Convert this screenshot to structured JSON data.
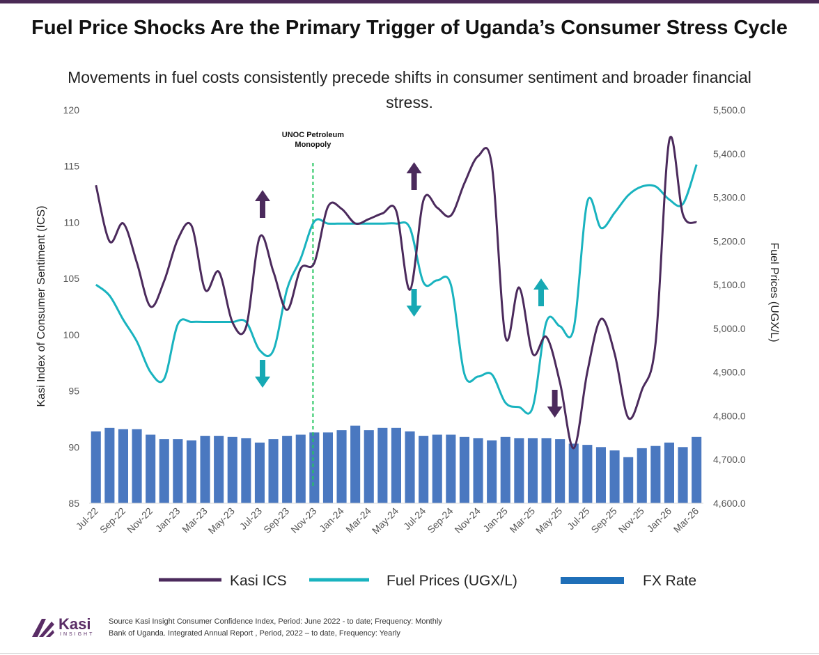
{
  "title": "Fuel Price Shocks Are the Primary Trigger of Uganda’s Consumer Stress Cycle",
  "subtitle": "Movements in fuel costs consistently precede shifts in consumer sentiment and broader financial stress.",
  "brand": {
    "name": "Kasi",
    "tagline": "INSIGHT"
  },
  "source_lines": [
    "Source Kasi Insight Consumer Confidence Index, Period: June 2022 - to date; Frequency: Monthly",
    "Bank of Uganda. Integrated Annual Report , Period, 2022 – to date, Frequency: Yearly"
  ],
  "colors": {
    "ics": "#4b2a5c",
    "fuel": "#19b3bf",
    "fx": "#4a78c0",
    "marker": "#22c55e",
    "arrow_purple": "#4b2a5c",
    "arrow_teal": "#17a9b4"
  },
  "chart_data": {
    "type": "line",
    "xlabel": "",
    "ylabel": "Kasi Index of Consumer Sentiment (ICS)",
    "y2label": "Fuel Prices  (UGX/L)",
    "ylim": [
      85,
      120
    ],
    "y2lim": [
      4600,
      5500
    ],
    "yticks": [
      "85",
      "90",
      "95",
      "100",
      "105",
      "110",
      "115",
      "120"
    ],
    "y2ticks": [
      "4,600.0",
      "4,700.0",
      "4,800.0",
      "4,900.0",
      "5,000.0",
      "5,100.0",
      "5,200.0",
      "5,300.0",
      "5,400.0",
      "5,500.0"
    ],
    "x": [
      "Jul-22",
      "Aug-22",
      "Sep-22",
      "Oct-22",
      "Nov-22",
      "Dec-22",
      "Jan-23",
      "Feb-23",
      "Mar-23",
      "Apr-23",
      "May-23",
      "Jun-23",
      "Jul-23",
      "Aug-23",
      "Sep-23",
      "Oct-23",
      "Nov-23",
      "Dec-23",
      "Jan-24",
      "Feb-24",
      "Mar-24",
      "Apr-24",
      "May-24",
      "Jun-24",
      "Jul-24",
      "Aug-24",
      "Sep-24",
      "Oct-24",
      "Nov-24",
      "Dec-24",
      "Jan-25",
      "Feb-25",
      "Mar-25",
      "Apr-25",
      "May-25",
      "Jun-25",
      "Jul-25",
      "Aug-25",
      "Sep-25",
      "Oct-25",
      "Nov-25",
      "Dec-25",
      "Jan-26",
      "Feb-26",
      "Mar-26"
    ],
    "xtick_labels": [
      "Jul-22",
      "Sep-22",
      "Nov-22",
      "Jan-23",
      "Mar-23",
      "May-23",
      "Jul-23",
      "Sep-23",
      "Nov-23",
      "Jan-24",
      "Mar-24",
      "May-24",
      "Jul-24",
      "Sep-24",
      "Nov-24",
      "Jan-25",
      "Mar-25",
      "May-25",
      "Jul-25",
      "Sep-25",
      "Nov-25",
      "Jan-26",
      "Mar-26"
    ],
    "series": [
      {
        "name": "Kasi ICS",
        "kind": "line",
        "axis": "left",
        "values": [
          113.3,
          108.3,
          109.9,
          106.4,
          102.5,
          104.8,
          108.5,
          109.7,
          104.0,
          105.6,
          101.1,
          100.7,
          108.7,
          105.6,
          102.2,
          105.9,
          106.4,
          111.4,
          111.2,
          109.9,
          110.3,
          110.8,
          111.0,
          104.0,
          112.0,
          111.3,
          110.6,
          113.5,
          115.9,
          115.1,
          99.8,
          104.2,
          98.3,
          99.8,
          95.7,
          89.9,
          96.7,
          101.4,
          98.3,
          92.6,
          95.1,
          99.3,
          117.3,
          110.7,
          110.0
        ]
      },
      {
        "name": "Fuel Prices (UGX/L)",
        "kind": "line",
        "axis": "right",
        "values": [
          5100,
          5075,
          5020,
          4970,
          4900,
          4885,
          5010,
          5015,
          5015,
          5015,
          5015,
          5015,
          4950,
          4950,
          5090,
          5160,
          5245,
          5240,
          5240,
          5240,
          5240,
          5240,
          5240,
          5230,
          5105,
          5110,
          5100,
          4895,
          4890,
          4895,
          4830,
          4820,
          4820,
          5015,
          5005,
          5000,
          5290,
          5230,
          5265,
          5305,
          5325,
          5325,
          5295,
          5285,
          5375
        ]
      },
      {
        "name": "FX Rate",
        "kind": "bar",
        "axis": "left",
        "values": [
          91.4,
          91.7,
          91.6,
          91.6,
          91.1,
          90.7,
          90.7,
          90.6,
          91.0,
          91.0,
          90.9,
          90.8,
          90.4,
          90.7,
          91.0,
          91.1,
          91.3,
          91.3,
          91.5,
          91.9,
          91.5,
          91.7,
          91.7,
          91.4,
          91.0,
          91.1,
          91.1,
          90.9,
          90.8,
          90.6,
          90.9,
          90.8,
          90.8,
          90.8,
          90.7,
          90.3,
          90.2,
          90.0,
          89.7,
          89.1,
          89.9,
          90.1,
          90.4,
          90.0,
          90.9
        ]
      }
    ],
    "annotations": [
      {
        "text": "UNOC Petroleum Monopoly",
        "x": "Nov-23",
        "type": "vertical-dashed-line"
      }
    ],
    "arrows": [
      {
        "color": "purple",
        "direction": "up",
        "x": "Jul-23"
      },
      {
        "color": "teal",
        "direction": "down",
        "x": "Jul-23"
      },
      {
        "color": "purple",
        "direction": "up",
        "x": "Jun-24"
      },
      {
        "color": "teal",
        "direction": "down",
        "x": "Jun-24"
      },
      {
        "color": "teal",
        "direction": "up",
        "x": "Mar-25"
      },
      {
        "color": "purple",
        "direction": "down",
        "x": "Apr-25"
      }
    ],
    "grid": false,
    "legend": "bottom"
  }
}
